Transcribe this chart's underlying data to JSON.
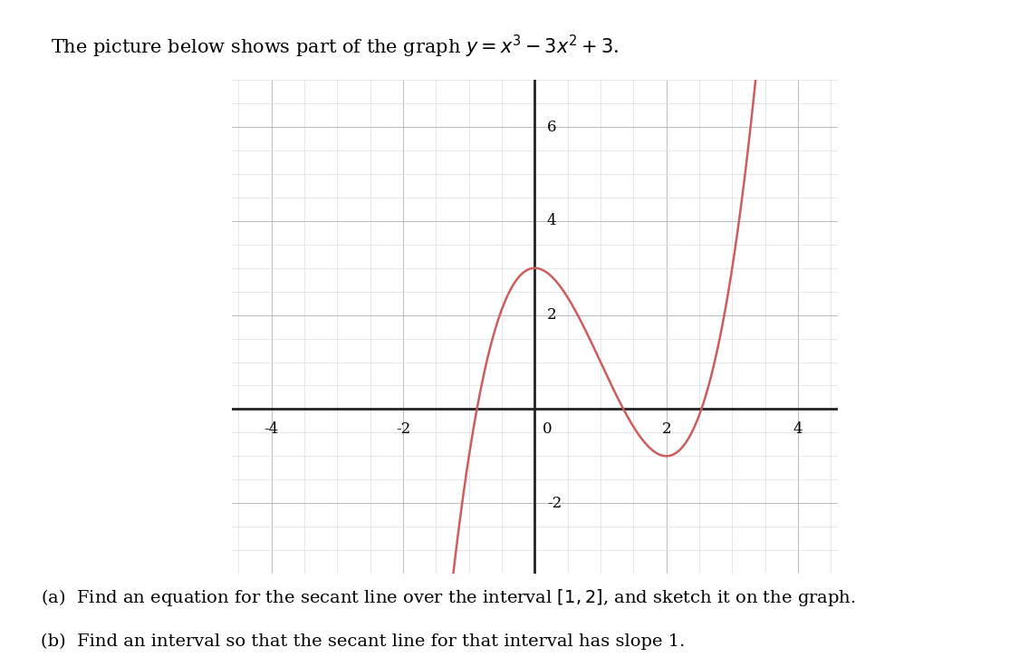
{
  "title_plain": "The picture below shows part of the graph ",
  "title_math": "y = x^3 - 3x^2 + 3",
  "subtitle_a": "(a)  Find an equation for the secant line over the interval [1, 2], and sketch it on the graph.",
  "subtitle_b": "(b)  Find an interval so that the secant line for that interval has slope 1.",
  "xlim": [
    -4.6,
    4.6
  ],
  "ylim": [
    -3.5,
    7.0
  ],
  "xticks": [
    -4,
    -2,
    0,
    2,
    4
  ],
  "yticks": [
    -2,
    2,
    4,
    6
  ],
  "curve_color": "#cd5c5c",
  "curve_linewidth": 1.8,
  "grid_major_color": "#bbbbbb",
  "grid_minor_color": "#dddddd",
  "grid_linewidth": 0.6,
  "axis_color": "#222222",
  "axis_linewidth": 2.0,
  "background_color": "#ffffff",
  "x_range_min": -1.35,
  "x_range_max": 3.75,
  "tick_fontsize": 12,
  "text_fontsize": 14,
  "title_fontsize": 15
}
